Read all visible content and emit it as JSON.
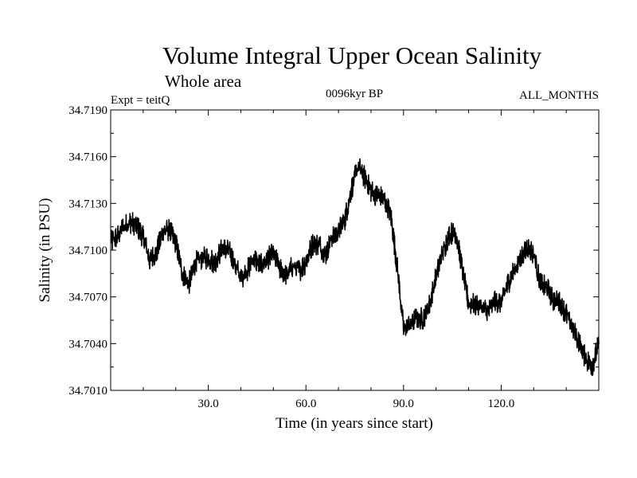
{
  "chart_data": {
    "type": "line",
    "title": "Volume Integral Upper Ocean Salinity",
    "subtitle": "Whole area",
    "info_left": "Expt = teitQ",
    "info_center": "0096kyr BP",
    "info_right": "ALL_MONTHS",
    "xlabel": "Time (in years since start)",
    "ylabel": "Salinity (in PSU)",
    "xlim": [
      0,
      150
    ],
    "ylim": [
      34.701,
      34.719
    ],
    "x_ticks": [
      30,
      60,
      90,
      120
    ],
    "x_tick_labels": [
      "30.0",
      "60.0",
      "90.0",
      "120.0"
    ],
    "y_ticks": [
      34.701,
      34.704,
      34.707,
      34.71,
      34.713,
      34.716,
      34.719
    ],
    "y_tick_labels": [
      "34.7010",
      "34.7040",
      "34.7070",
      "34.7100",
      "34.7130",
      "34.7160",
      "34.7190"
    ],
    "grid": false,
    "line_color": "#000000",
    "series": [
      {
        "name": "salinity",
        "x": [
          0,
          2,
          4,
          6,
          8,
          10,
          12,
          14,
          16,
          18,
          20,
          22,
          24,
          26,
          28,
          30,
          32,
          34,
          36,
          38,
          40,
          42,
          44,
          46,
          48,
          50,
          52,
          54,
          56,
          58,
          60,
          62,
          64,
          66,
          68,
          70,
          72,
          74,
          76,
          78,
          80,
          82,
          84,
          86,
          88,
          90,
          92,
          94,
          96,
          98,
          100,
          102,
          104,
          106,
          108,
          110,
          112,
          114,
          116,
          118,
          120,
          122,
          124,
          126,
          128,
          130,
          132,
          134,
          136,
          138,
          140,
          142,
          144,
          146,
          148,
          150
        ],
        "values": [
          34.7105,
          34.7109,
          34.7115,
          34.7118,
          34.7116,
          34.7108,
          34.7094,
          34.7098,
          34.7112,
          34.7113,
          34.7105,
          34.7085,
          34.7078,
          34.7092,
          34.7095,
          34.7095,
          34.7092,
          34.71,
          34.7101,
          34.7092,
          34.7082,
          34.7087,
          34.7095,
          34.709,
          34.7094,
          34.7098,
          34.7088,
          34.7084,
          34.709,
          34.7087,
          34.7092,
          34.7104,
          34.7104,
          34.7097,
          34.7108,
          34.7112,
          34.712,
          34.7139,
          34.7154,
          34.7147,
          34.7138,
          34.7135,
          34.7133,
          34.7124,
          34.709,
          34.705,
          34.7052,
          34.7057,
          34.7056,
          34.7065,
          34.7083,
          34.7098,
          34.711,
          34.7112,
          34.7088,
          34.7066,
          34.7065,
          34.7064,
          34.706,
          34.7068,
          34.7066,
          34.7078,
          34.7087,
          34.7095,
          34.7102,
          34.7098,
          34.7078,
          34.7076,
          34.7068,
          34.7066,
          34.7059,
          34.705,
          34.704,
          34.703,
          34.7026,
          34.704
        ]
      }
    ]
  }
}
